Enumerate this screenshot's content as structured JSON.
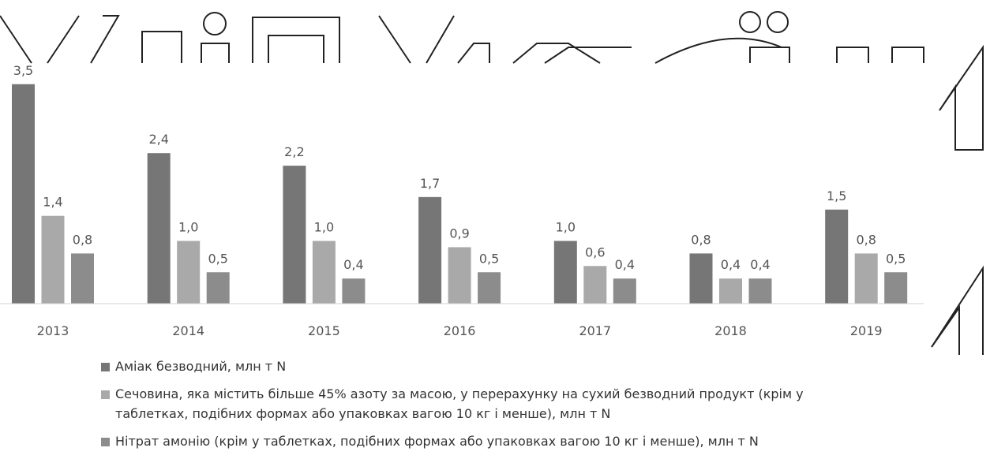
{
  "chart_data": {
    "type": "bar",
    "categories": [
      "2013",
      "2014",
      "2015",
      "2016",
      "2017",
      "2018",
      "2019"
    ],
    "series": [
      {
        "name": "Аміак безводний, млн т N",
        "color": "#767676",
        "values": [
          3.5,
          2.4,
          2.2,
          1.7,
          1.0,
          0.8,
          1.5
        ],
        "value_labels": [
          "3,5",
          "2,4",
          "2,2",
          "1,7",
          "1,0",
          "0,8",
          "1,5"
        ]
      },
      {
        "name": "Сечовина, яка містить більше 45% азоту за масою, у перерахунку на сухий безводний продукт (крім у таблетках, подібних формах або упаковках вагою 10 кг і менше), млн т N",
        "color": "#a9a9a9",
        "values": [
          1.4,
          1.0,
          1.0,
          0.9,
          0.6,
          0.4,
          0.8
        ],
        "value_labels": [
          "1,4",
          "1,0",
          "1,0",
          "0,9",
          "0,6",
          "0,4",
          "0,8"
        ]
      },
      {
        "name": "Нітрат амонію (крім у таблетках, подібних формах або упаковках вагою 10 кг і менше), млн т N",
        "color": "#8c8c8c",
        "values": [
          0.8,
          0.5,
          0.4,
          0.5,
          0.4,
          0.4,
          0.5
        ],
        "value_labels": [
          "0,8",
          "0,5",
          "0,4",
          "0,5",
          "0,4",
          "0,4",
          "0,5"
        ]
      }
    ]
  }
}
